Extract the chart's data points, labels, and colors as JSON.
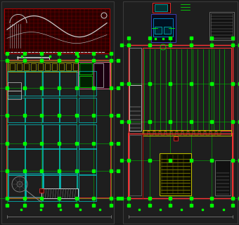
{
  "fig_bg": "#1c1c1c",
  "panel_bg": "#222222",
  "border_col": "#3a3a3a",
  "red": "#cc0000",
  "red2": "#ff3333",
  "green": "#00bb00",
  "green2": "#00ff00",
  "cyan": "#00cccc",
  "cyan2": "#00ffff",
  "yellow": "#bbbb00",
  "white": "#cccccc",
  "gray": "#888888",
  "pink": "#ff88aa"
}
